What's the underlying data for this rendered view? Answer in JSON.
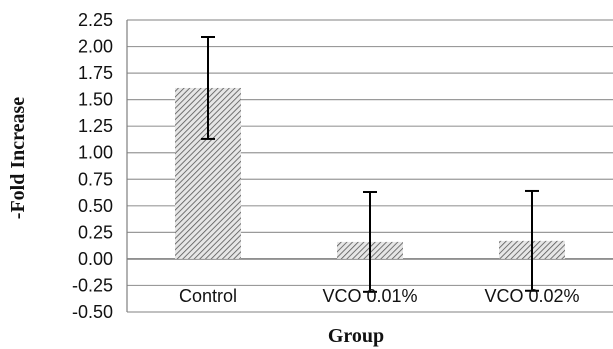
{
  "chart_data": {
    "type": "bar",
    "title": "",
    "xlabel": "Group",
    "ylabel": "-Fold Increase",
    "categories": [
      "Control",
      "VCO 0.01%",
      "VCO 0.02%"
    ],
    "values": [
      1.61,
      0.16,
      0.17
    ],
    "error_high": [
      2.09,
      0.63,
      0.64
    ],
    "error_low": [
      1.13,
      -0.31,
      -0.3
    ],
    "ylim": [
      -0.5,
      2.25
    ],
    "yticks": [
      "2.25",
      "2.00",
      "1.75",
      "1.50",
      "1.25",
      "1.00",
      "0.75",
      "0.50",
      "0.25",
      "0.00",
      "-0.25",
      "-0.50"
    ],
    "grid": true,
    "bar_fill": "hatched-gray",
    "colors": {
      "grid": "#9a9a9a",
      "axis": "#7f7f7f",
      "hatch": "#555555",
      "bar_bg": "#e6e6e6",
      "error": "#000000"
    }
  }
}
